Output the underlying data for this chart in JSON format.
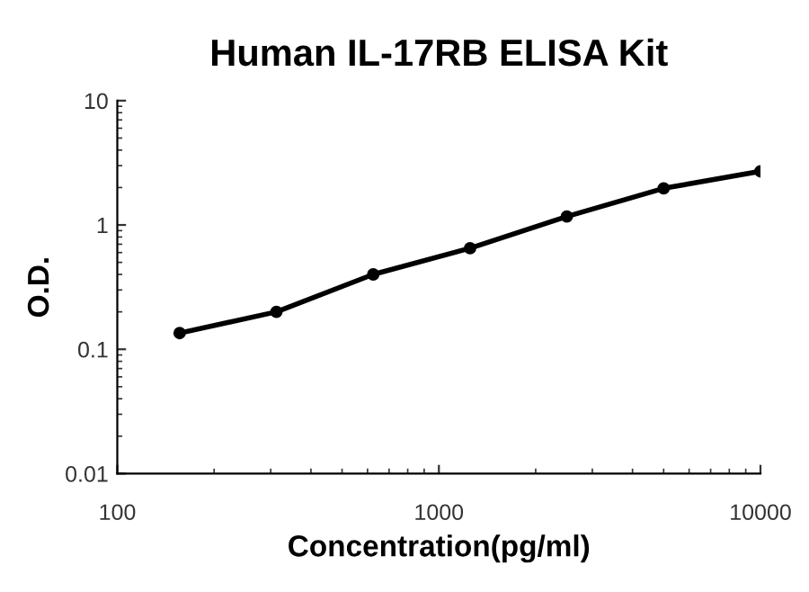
{
  "chart_data": {
    "type": "line",
    "title": "Human IL-17RB ELISA Kit",
    "xlabel": "Concentration(pg/ml)",
    "ylabel": "O.D.",
    "log": "xy",
    "grid": false,
    "legend": false,
    "marker": "circle",
    "line_style": "solid",
    "x": [
      156.25,
      312.5,
      625,
      1250,
      2500,
      5000,
      10000
    ],
    "series": [
      {
        "color": "#000000",
        "values": [
          0.135,
          0.2,
          0.4,
          0.65,
          1.17,
          1.97,
          2.7
        ]
      }
    ],
    "xlim": [
      100,
      10000
    ],
    "xticks": [
      100,
      1000,
      10000
    ],
    "ylim": [
      0.01,
      10
    ],
    "yticks": [
      0.01,
      0.1,
      1,
      10
    ]
  }
}
